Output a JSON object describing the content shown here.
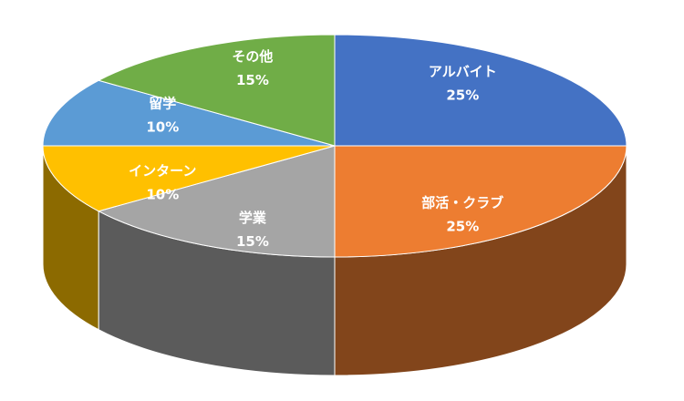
{
  "chart_data": {
    "type": "pie",
    "three_d": true,
    "categories": [
      "アルバイト",
      "部活・クラブ",
      "学業",
      "インターン",
      "留学",
      "その他"
    ],
    "values": [
      25,
      25,
      15,
      10,
      10,
      15
    ],
    "value_labels": [
      "25%",
      "25%",
      "15%",
      "10%",
      "10%",
      "15%"
    ],
    "colors": [
      "#4472c4",
      "#ed7d31",
      "#a5a5a5",
      "#ffc000",
      "#5b9bd5",
      "#70ad47"
    ]
  }
}
